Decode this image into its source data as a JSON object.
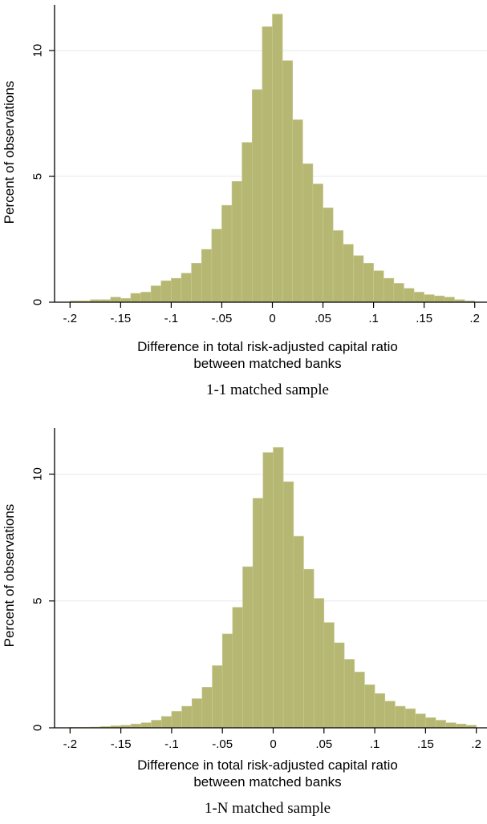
{
  "chart_data": [
    {
      "type": "bar",
      "subtype": "histogram",
      "caption": "1-1 matched sample",
      "xlabel": [
        "Difference in total risk-adjusted capital ratio",
        "between matched banks"
      ],
      "ylabel": "Percent of observations",
      "xlim": [
        -0.205,
        0.205
      ],
      "ylim": [
        0,
        11.5
      ],
      "xticks": [
        -0.2,
        -0.15,
        -0.1,
        -0.05,
        0,
        0.05,
        0.1,
        0.15,
        0.2
      ],
      "xtick_labels": [
        "-.2",
        "-.15",
        "-.1",
        "-.05",
        "0",
        ".05",
        ".1",
        ".15",
        ".2"
      ],
      "yticks": [
        0,
        5,
        10
      ],
      "ytick_labels": [
        "0",
        "5",
        "10"
      ],
      "grid": true,
      "bar_color": "#b5b772",
      "bin_width": 0.01,
      "bin_start": -0.2,
      "values": [
        0.05,
        0.05,
        0.1,
        0.1,
        0.2,
        0.15,
        0.35,
        0.4,
        0.65,
        0.85,
        0.95,
        1.15,
        1.55,
        2.1,
        2.9,
        3.85,
        4.8,
        6.35,
        8.45,
        10.95,
        11.45,
        9.6,
        7.25,
        5.5,
        4.7,
        3.75,
        2.85,
        2.3,
        1.85,
        1.55,
        1.25,
        0.95,
        0.75,
        0.55,
        0.4,
        0.3,
        0.25,
        0.2,
        0.1,
        0.05
      ]
    },
    {
      "type": "bar",
      "subtype": "histogram",
      "caption": "1-N matched sample",
      "xlabel": [
        "Difference in total risk-adjusted capital ratio",
        "between matched banks"
      ],
      "ylabel": "Percent of observations",
      "xlim": [
        -0.205,
        0.205
      ],
      "ylim": [
        0,
        11.5
      ],
      "xticks": [
        -0.2,
        -0.15,
        -0.1,
        -0.05,
        0,
        0.05,
        0.1,
        0.15,
        0.2
      ],
      "xtick_labels": [
        "-.2",
        "-.15",
        "-.1",
        "-.05",
        "0",
        ".05",
        ".1",
        ".15",
        ".2"
      ],
      "yticks": [
        0,
        5,
        10
      ],
      "ytick_labels": [
        "0",
        "5",
        "10"
      ],
      "grid": true,
      "bar_color": "#b5b772",
      "bin_width": 0.01,
      "bin_start": -0.2,
      "values": [
        0.02,
        0.02,
        0.03,
        0.05,
        0.08,
        0.1,
        0.15,
        0.2,
        0.3,
        0.45,
        0.65,
        0.85,
        1.15,
        1.6,
        2.45,
        3.7,
        4.75,
        6.35,
        9.05,
        10.85,
        11.05,
        9.7,
        7.55,
        6.25,
        5.1,
        4.15,
        3.35,
        2.7,
        2.2,
        1.7,
        1.35,
        1.05,
        0.85,
        0.75,
        0.55,
        0.4,
        0.3,
        0.2,
        0.15,
        0.1
      ]
    }
  ]
}
